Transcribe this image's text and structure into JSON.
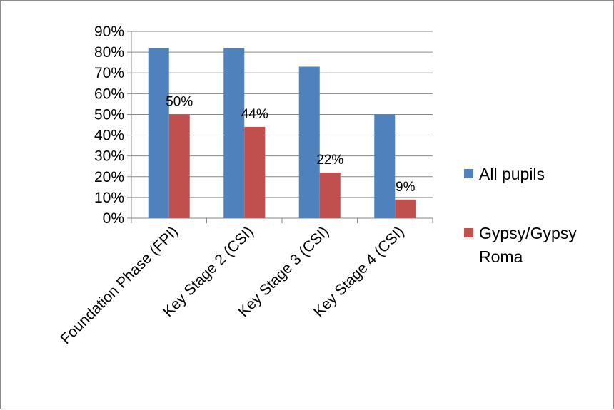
{
  "chart_data": {
    "type": "bar",
    "title": "",
    "xlabel": "",
    "ylabel": "",
    "ylim": [
      0,
      90
    ],
    "y_ticks": [
      "0%",
      "10%",
      "20%",
      "30%",
      "40%",
      "50%",
      "60%",
      "70%",
      "80%",
      "90%"
    ],
    "categories": [
      "Foundation Phase (FPI)",
      "Key Stage 2 (CSI)",
      "Key Stage 3 (CSI)",
      "Key Stage 4 (CSI)"
    ],
    "series": [
      {
        "name": "All pupils",
        "color": "#4f81bd",
        "values": [
          82,
          82,
          73,
          50
        ],
        "labels": [
          "",
          "",
          "",
          ""
        ]
      },
      {
        "name": "Gypsy/Gypsy Roma",
        "color": "#c0504d",
        "values": [
          50,
          44,
          22,
          9
        ],
        "labels": [
          "50%",
          "44%",
          "22%",
          "9%"
        ]
      }
    ],
    "legend_position": "right",
    "grid": true,
    "value_unit": "%"
  }
}
